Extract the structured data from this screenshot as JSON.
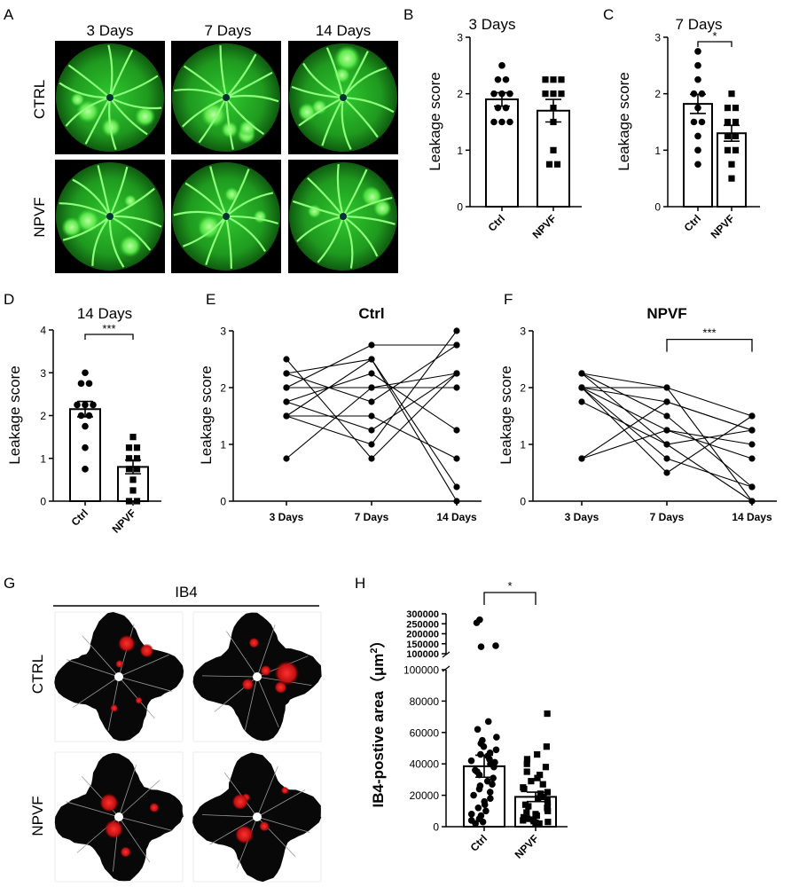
{
  "panelA": {
    "letter": "A",
    "columns": [
      "3 Days",
      "7 Days",
      "14 Days"
    ],
    "rows": [
      "CTRL",
      "NPVF"
    ]
  },
  "panelG": {
    "letter": "G",
    "header": "IB4",
    "rows": [
      "CTRL",
      "NPVF"
    ]
  },
  "colors": {
    "angiogram": "#19a019",
    "angiogram_bright": "#7dff6a",
    "lesion": "#d01818"
  },
  "chart_data": [
    {
      "id": "B",
      "letter": "B",
      "type": "bar",
      "title": "3 Days",
      "ylabel": "Leakage score",
      "ylim": [
        0,
        3
      ],
      "yticks": [
        0,
        1,
        2,
        3
      ],
      "categories": [
        "Ctrl",
        "NPVF"
      ],
      "means": [
        1.9,
        1.7
      ],
      "sem": [
        0.12,
        0.2
      ],
      "points": [
        [
          2.5,
          2.25,
          2.25,
          2.0,
          2.0,
          2.0,
          1.75,
          1.75,
          1.5,
          1.5,
          1.5
        ],
        [
          2.25,
          2.25,
          2.25,
          2.0,
          2.0,
          2.0,
          1.75,
          1.5,
          1.0,
          0.75,
          0.75
        ]
      ],
      "markers": [
        "circle",
        "square"
      ]
    },
    {
      "id": "C",
      "letter": "C",
      "type": "bar",
      "title": "7 Days",
      "ylabel": "Leakage score",
      "ylim": [
        0,
        3
      ],
      "yticks": [
        0,
        1,
        2,
        3
      ],
      "categories": [
        "Ctrl",
        "NPVF"
      ],
      "means": [
        1.82,
        1.3
      ],
      "sem": [
        0.17,
        0.14
      ],
      "points": [
        [
          2.75,
          2.5,
          2.25,
          2.0,
          2.0,
          1.75,
          1.5,
          1.5,
          1.25,
          1.0,
          0.75
        ],
        [
          2.0,
          1.75,
          1.75,
          1.5,
          1.5,
          1.25,
          1.25,
          1.0,
          1.0,
          0.75,
          0.5
        ]
      ],
      "markers": [
        "circle",
        "square"
      ],
      "significance": "*"
    },
    {
      "id": "D",
      "letter": "D",
      "type": "bar",
      "title": "14 Days",
      "ylabel": "Leakage score",
      "ylim": [
        0,
        4
      ],
      "yticks": [
        0,
        1,
        2,
        3,
        4
      ],
      "categories": [
        "Ctrl",
        "NPVF"
      ],
      "means": [
        2.15,
        0.8
      ],
      "sem": [
        0.18,
        0.16
      ],
      "points": [
        [
          3.0,
          2.75,
          2.75,
          2.25,
          2.25,
          2.25,
          2.0,
          2.0,
          1.75,
          1.25,
          0.75
        ],
        [
          1.5,
          1.25,
          1.25,
          1.0,
          1.0,
          0.75,
          0.75,
          0.5,
          0.25,
          0.0,
          0.0
        ]
      ],
      "markers": [
        "circle",
        "square"
      ],
      "significance": "***"
    },
    {
      "id": "E",
      "letter": "E",
      "type": "line",
      "title": "Ctrl",
      "ylabel": "Leakage score",
      "ylim": [
        0,
        3
      ],
      "yticks": [
        0,
        1,
        2,
        3
      ],
      "x": [
        "3 Days",
        "7 Days",
        "14 Days"
      ],
      "series": [
        {
          "values": [
            2.5,
            0.75,
            2.25
          ]
        },
        {
          "values": [
            2.25,
            2.5,
            0.25
          ]
        },
        {
          "values": [
            2.25,
            1.75,
            2.75
          ]
        },
        {
          "values": [
            2.0,
            2.75,
            2.75
          ]
        },
        {
          "values": [
            2.0,
            2.0,
            2.0
          ]
        },
        {
          "values": [
            1.75,
            2.25,
            1.25
          ]
        },
        {
          "values": [
            1.75,
            1.25,
            2.25
          ]
        },
        {
          "values": [
            1.5,
            1.0,
            3.0
          ]
        },
        {
          "values": [
            1.5,
            2.5,
            0.0
          ]
        },
        {
          "values": [
            1.5,
            1.5,
            0.75
          ]
        },
        {
          "values": [
            0.75,
            2.0,
            2.25
          ]
        }
      ]
    },
    {
      "id": "F",
      "letter": "F",
      "type": "line",
      "title": "NPVF",
      "ylabel": "Leakage score",
      "ylim": [
        0,
        3
      ],
      "yticks": [
        0,
        1,
        2,
        3
      ],
      "x": [
        "3 Days",
        "7 Days",
        "14 Days"
      ],
      "series": [
        {
          "values": [
            2.25,
            2.0,
            1.5
          ]
        },
        {
          "values": [
            2.25,
            1.5,
            0.25
          ]
        },
        {
          "values": [
            2.0,
            1.75,
            1.25
          ]
        },
        {
          "values": [
            2.0,
            0.5,
            1.5
          ]
        },
        {
          "values": [
            2.0,
            1.25,
            1.0
          ]
        },
        {
          "values": [
            1.75,
            1.0,
            0.0
          ]
        },
        {
          "values": [
            0.75,
            1.75,
            1.25
          ]
        },
        {
          "values": [
            0.75,
            1.25,
            0.75
          ]
        },
        {
          "values": [
            2.0,
            0.75,
            0.25
          ]
        },
        {
          "values": [
            2.25,
            1.0,
            1.25
          ]
        },
        {
          "values": [
            2.0,
            2.0,
            0.0
          ]
        }
      ],
      "bracket": {
        "from": "7 Days",
        "to": "14 Days",
        "label": "***"
      }
    },
    {
      "id": "H",
      "letter": "H",
      "type": "bar",
      "ylabel": "IB4-postive area（μm²）",
      "ylabel_main": "IB4-postive area（μm",
      "ylabel_sup": "2",
      "ylabel_close": "）",
      "yticks_lower": [
        "0",
        "20000",
        "40000",
        "60000",
        "80000",
        "100000"
      ],
      "yticks_upper": [
        "100000",
        "150000",
        "200000",
        "250000",
        "300000"
      ],
      "ylim_lower": [
        0,
        100000
      ],
      "ylim_upper": [
        100000,
        300000
      ],
      "categories": [
        "Ctrl",
        "NPVF"
      ],
      "means": [
        38500,
        19000
      ],
      "sem": [
        7000,
        3000
      ],
      "points": [
        [
          270000,
          255000,
          140000,
          135000,
          67000,
          62000,
          57000,
          55000,
          53000,
          51000,
          49000,
          47000,
          46000,
          45000,
          43000,
          42000,
          41000,
          40000,
          38000,
          36000,
          35000,
          33000,
          31000,
          29000,
          27000,
          26000,
          24000,
          22000,
          20000,
          18000,
          16000,
          14000,
          12000,
          10000,
          8000,
          7000,
          5000,
          4000,
          3000,
          2000
        ],
        [
          72000,
          51000,
          46000,
          43000,
          40000,
          38000,
          35000,
          33000,
          31000,
          29000,
          27000,
          25000,
          24000,
          22000,
          21000,
          19000,
          18000,
          17000,
          15000,
          14000,
          13000,
          12000,
          11000,
          10000,
          9000,
          8000,
          7000,
          6000,
          5000,
          4500,
          4000,
          3500,
          3000,
          2500,
          2000
        ]
      ],
      "markers": [
        "circle",
        "square"
      ],
      "significance": "*"
    }
  ]
}
